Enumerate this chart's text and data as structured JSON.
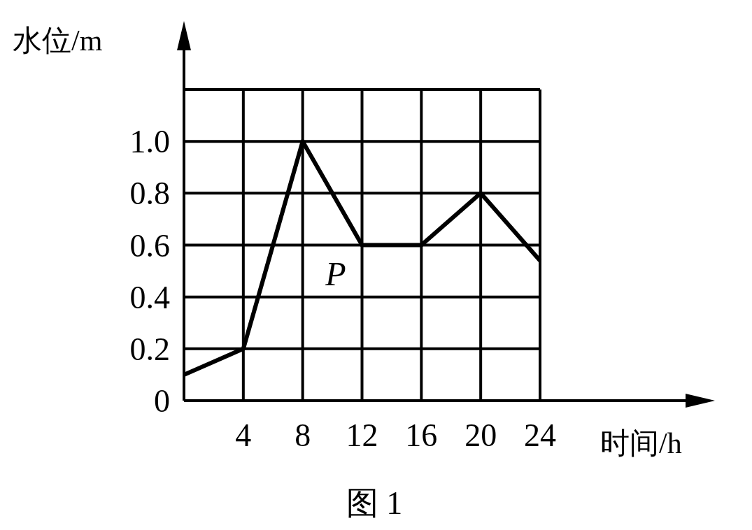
{
  "chart_data": {
    "type": "line",
    "xlabel": "时间/h",
    "ylabel": "水位/m",
    "x": [
      0,
      4,
      8,
      12,
      16,
      20,
      24
    ],
    "series": [
      {
        "color": "#000000",
        "values": [
          0.1,
          0.2,
          1.0,
          0.6,
          0.6,
          0.8,
          0.54
        ]
      }
    ],
    "xlim": [
      0,
      24
    ],
    "ylim": [
      0,
      1.2
    ],
    "xticks": [
      {
        "value": 0,
        "label": null
      },
      4,
      8,
      12,
      16,
      20,
      24
    ],
    "yticks": [
      0,
      0.2,
      0.4,
      0.6,
      0.8,
      {
        "value": 1.0,
        "label": "1.0"
      },
      {
        "value": 1.2,
        "label": null
      }
    ],
    "grid": true,
    "marker": "none",
    "line_style": "solid",
    "annotations": [
      "P",
      "图 1"
    ]
  }
}
